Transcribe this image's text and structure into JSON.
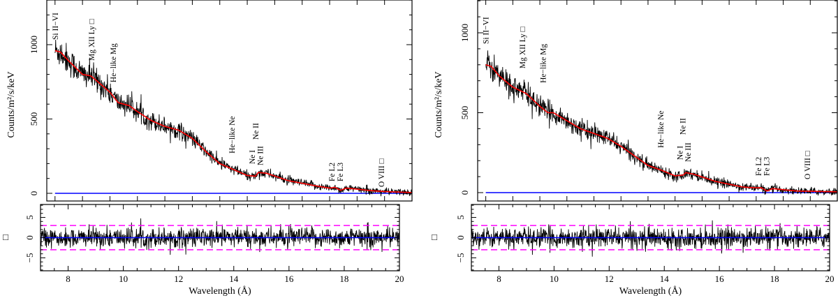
{
  "chart_data": [
    {
      "type": "line",
      "panel": "left",
      "xlabel": "Wavelength (Å)",
      "ylabel": "Counts/m²/s/keV",
      "resid_ylabel": "□",
      "xlim_top": [
        7.2,
        20.5
      ],
      "xlim_bottom": [
        7,
        20
      ],
      "ylim": [
        0,
        1300
      ],
      "resid_ylim": [
        -8.2,
        8.2
      ],
      "xticks": [
        "8",
        "10",
        "12",
        "14",
        "16",
        "18",
        "20"
      ],
      "yticks": [
        "0",
        "500",
        "1000"
      ],
      "resid_yticks": [
        "−5",
        "0",
        "5"
      ],
      "resid_sigma_lines": [
        -3,
        3
      ],
      "colors": {
        "data": "#000000",
        "model": "#ff0000",
        "zero": "#0000ff",
        "sigma": "#ff00ff"
      },
      "model": [
        [
          7.5,
          960
        ],
        [
          7.7,
          950
        ],
        [
          8.0,
          890
        ],
        [
          8.5,
          800
        ],
        [
          8.8,
          790
        ],
        [
          9.0,
          760
        ],
        [
          9.5,
          680
        ],
        [
          9.8,
          610
        ],
        [
          10.0,
          600
        ],
        [
          10.2,
          590
        ],
        [
          10.5,
          550
        ],
        [
          11,
          490
        ],
        [
          11.5,
          450
        ],
        [
          12,
          425
        ],
        [
          12.5,
          370
        ],
        [
          13,
          280
        ],
        [
          13.5,
          200
        ],
        [
          14,
          160
        ],
        [
          14.5,
          120
        ],
        [
          14.8,
          115
        ],
        [
          14.9,
          140
        ],
        [
          15.2,
          135
        ],
        [
          16,
          85
        ],
        [
          17,
          50
        ],
        [
          17.5,
          35
        ],
        [
          17.7,
          40
        ],
        [
          17.9,
          20
        ],
        [
          18.1,
          35
        ],
        [
          18.5,
          28
        ],
        [
          19,
          18
        ],
        [
          19.5,
          12
        ],
        [
          20.5,
          5
        ]
      ],
      "annotations": [
        {
          "text": "Si II−VI",
          "x": 7.5,
          "y": 1033
        },
        {
          "text": "Mg XII Ly □",
          "x": 8.83,
          "y": 892
        },
        {
          "text": "He−like Mg",
          "x": 9.62,
          "y": 746
        },
        {
          "text": "He−like Ne",
          "x": 13.94,
          "y": 268
        },
        {
          "text": "Ne I",
          "x": 14.68,
          "y": 197
        },
        {
          "text": "Ne III",
          "x": 14.97,
          "y": 188
        },
        {
          "text": "Ne II",
          "x": 14.8,
          "y": 361
        },
        {
          "text": "Fe L2",
          "x": 17.58,
          "y": 80
        },
        {
          "text": "Fe L3",
          "x": 17.88,
          "y": 80
        },
        {
          "text": "O VIII □",
          "x": 19.38,
          "y": 42
        }
      ]
    },
    {
      "type": "line",
      "panel": "right",
      "xlabel": "Wavelength (Å)",
      "ylabel": "Counts/m²/s/keV",
      "resid_ylabel": "□",
      "xlim_top": [
        7.2,
        20.5
      ],
      "xlim_bottom": [
        7,
        20
      ],
      "ylim": [
        0,
        1205
      ],
      "resid_ylim": [
        -8.2,
        8.2
      ],
      "xticks": [
        "8",
        "10",
        "12",
        "14",
        "16",
        "18",
        "20"
      ],
      "yticks": [
        "0",
        "500",
        "1000"
      ],
      "resid_yticks": [
        "−5",
        "0",
        "5"
      ],
      "resid_sigma_lines": [
        -3,
        3
      ],
      "colors": {
        "data": "#000000",
        "model": "#ff0000",
        "zero": "#0000ff",
        "sigma": "#ff00ff"
      },
      "model": [
        [
          7.5,
          800
        ],
        [
          7.7,
          790
        ],
        [
          8,
          730
        ],
        [
          8.5,
          660
        ],
        [
          9,
          620
        ],
        [
          9.5,
          540
        ],
        [
          9.8,
          500
        ],
        [
          10,
          500
        ],
        [
          10.5,
          450
        ],
        [
          11,
          400
        ],
        [
          11.5,
          370
        ],
        [
          12,
          340
        ],
        [
          12.5,
          290
        ],
        [
          13,
          230
        ],
        [
          13.5,
          170
        ],
        [
          14,
          140
        ],
        [
          14.5,
          105
        ],
        [
          14.8,
          110
        ],
        [
          14.9,
          125
        ],
        [
          15.2,
          115
        ],
        [
          16,
          70
        ],
        [
          17,
          35
        ],
        [
          17.5,
          30
        ],
        [
          17.7,
          30
        ],
        [
          17.9,
          10
        ],
        [
          18.1,
          25
        ],
        [
          19,
          10
        ],
        [
          20.5,
          5
        ]
      ],
      "annotations": [
        {
          "text": "Si II−VI",
          "x": 7.5,
          "y": 930
        },
        {
          "text": "Mg XII Ly □",
          "x": 8.85,
          "y": 777
        },
        {
          "text": "He−like Mg",
          "x": 9.62,
          "y": 686
        },
        {
          "text": "He−like Ne",
          "x": 13.97,
          "y": 280
        },
        {
          "text": "Ne I",
          "x": 14.68,
          "y": 205
        },
        {
          "text": "Ne III",
          "x": 14.97,
          "y": 192
        },
        {
          "text": "Ne II",
          "x": 14.78,
          "y": 362
        },
        {
          "text": "Fe L2",
          "x": 17.58,
          "y": 105
        },
        {
          "text": "Fe L3",
          "x": 17.88,
          "y": 105
        },
        {
          "text": "O VIII □",
          "x": 19.39,
          "y": 83
        }
      ]
    }
  ]
}
